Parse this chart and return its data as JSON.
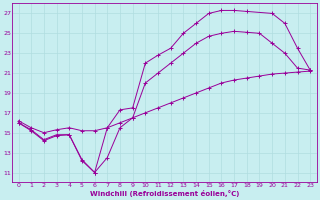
{
  "xlabel": "Windchill (Refroidissement éolien,°C)",
  "bg_color": "#c8eef0",
  "grid_color": "#b0dde0",
  "line_color": "#990099",
  "xlim": [
    -0.5,
    23.5
  ],
  "ylim": [
    10.0,
    28.0
  ],
  "xticks": [
    0,
    1,
    2,
    3,
    4,
    5,
    6,
    7,
    8,
    9,
    10,
    11,
    12,
    13,
    14,
    15,
    16,
    17,
    18,
    19,
    20,
    21,
    22,
    23
  ],
  "yticks": [
    11,
    13,
    15,
    17,
    19,
    21,
    23,
    25,
    27
  ],
  "curve1_x": [
    0,
    1,
    2,
    3,
    4,
    5,
    6,
    7,
    8,
    9,
    10,
    11,
    12,
    13,
    14,
    15,
    16,
    17,
    18,
    20,
    21,
    22,
    23
  ],
  "curve1_y": [
    16,
    15.2,
    14.2,
    14.7,
    14.8,
    12.2,
    11.0,
    15.5,
    17.3,
    17.5,
    22.0,
    22.8,
    23.5,
    25.0,
    26.0,
    27.0,
    27.3,
    27.3,
    27.2,
    27.0,
    26.0,
    23.5,
    21.3
  ],
  "curve2_x": [
    0,
    1,
    2,
    3,
    4,
    5,
    6,
    7,
    8,
    9,
    10,
    11,
    12,
    13,
    14,
    15,
    16,
    17,
    18,
    19,
    20,
    21,
    22,
    23
  ],
  "curve2_y": [
    16,
    15.3,
    14.3,
    14.8,
    14.8,
    12.3,
    11.0,
    12.5,
    15.5,
    16.5,
    20.0,
    21.0,
    22.0,
    23.0,
    24.0,
    24.7,
    25.0,
    25.2,
    25.1,
    25.0,
    24.0,
    23.0,
    21.5,
    21.3
  ],
  "curve3_x": [
    0,
    1,
    2,
    3,
    4,
    5,
    6,
    7,
    8,
    9,
    10,
    11,
    12,
    13,
    14,
    15,
    16,
    17,
    18,
    19,
    20,
    21,
    22,
    23
  ],
  "curve3_y": [
    16.2,
    15.5,
    15.0,
    15.3,
    15.5,
    15.2,
    15.2,
    15.5,
    16.0,
    16.5,
    17.0,
    17.5,
    18.0,
    18.5,
    19.0,
    19.5,
    20.0,
    20.3,
    20.5,
    20.7,
    20.9,
    21.0,
    21.1,
    21.2
  ]
}
